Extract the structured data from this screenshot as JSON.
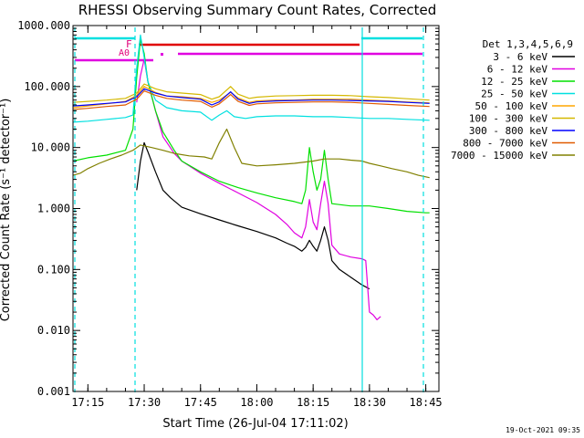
{
  "chart_data": {
    "type": "line",
    "title": "RHESSI Observing Summary Count Rates, Corrected",
    "xlabel": "Start Time (26-Jul-04 17:11:02)",
    "ylabel": "Corrected Count Rate (s⁻¹ detector⁻¹)",
    "y_scale": "log",
    "ylim": [
      0.001,
      1000
    ],
    "xlim": [
      "17:11:02",
      "18:48:30"
    ],
    "x_ticks": [
      "17:15",
      "17:30",
      "17:45",
      "18:00",
      "18:15",
      "18:30",
      "18:45"
    ],
    "y_ticks": [
      "1000.000",
      "100.000",
      "10.000",
      "1.000",
      "0.100",
      "0.010",
      "0.001"
    ],
    "legend_title": "Det 1,3,4,5,6,9",
    "legend_position": "right",
    "timestamp": "19-Oct-2021 09:35",
    "annotations": [
      {
        "text": "F",
        "color": "#e0007a"
      },
      {
        "text": "A0",
        "color": "#e0007a"
      }
    ],
    "series": [
      {
        "name": "3 - 6 keV",
        "color": "#000000",
        "points": [
          [
            "17:28:00",
            2.0
          ],
          [
            "17:29:00",
            6.0
          ],
          [
            "17:30:00",
            12.0
          ],
          [
            "17:31:00",
            8.5
          ],
          [
            "17:33:00",
            4.0
          ],
          [
            "17:35:00",
            2.0
          ],
          [
            "17:37:00",
            1.5
          ],
          [
            "17:40:00",
            1.05
          ],
          [
            "17:45:00",
            0.82
          ],
          [
            "17:50:00",
            0.65
          ],
          [
            "17:55:00",
            0.52
          ],
          [
            "18:00:00",
            0.42
          ],
          [
            "18:05:00",
            0.33
          ],
          [
            "18:08:00",
            0.27
          ],
          [
            "18:10:00",
            0.24
          ],
          [
            "18:12:00",
            0.2
          ],
          [
            "18:13:00",
            0.23
          ],
          [
            "18:14:00",
            0.3
          ],
          [
            "18:15:00",
            0.24
          ],
          [
            "18:16:00",
            0.2
          ],
          [
            "18:17:00",
            0.3
          ],
          [
            "18:18:00",
            0.5
          ],
          [
            "18:19:00",
            0.3
          ],
          [
            "18:20:00",
            0.14
          ],
          [
            "18:22:00",
            0.1
          ],
          [
            "18:25:00",
            0.075
          ],
          [
            "18:28:00",
            0.056
          ],
          [
            "18:30:00",
            0.048
          ]
        ]
      },
      {
        "name": "6 - 12 keV",
        "color": "#e000e0",
        "points": [
          [
            "17:28:00",
            55.0
          ],
          [
            "17:29:00",
            150.0
          ],
          [
            "17:30:00",
            280.0
          ],
          [
            "17:31:00",
            120.0
          ],
          [
            "17:33:00",
            40.0
          ],
          [
            "17:35:00",
            15.0
          ],
          [
            "17:38:00",
            8.0
          ],
          [
            "17:40:00",
            6.0
          ],
          [
            "17:45:00",
            3.8
          ],
          [
            "17:50:00",
            2.6
          ],
          [
            "17:55:00",
            1.8
          ],
          [
            "18:00:00",
            1.25
          ],
          [
            "18:05:00",
            0.8
          ],
          [
            "18:08:00",
            0.55
          ],
          [
            "18:10:00",
            0.4
          ],
          [
            "18:12:00",
            0.33
          ],
          [
            "18:13:00",
            0.5
          ],
          [
            "18:14:00",
            1.4
          ],
          [
            "18:15:00",
            0.6
          ],
          [
            "18:16:00",
            0.45
          ],
          [
            "18:17:00",
            1.2
          ],
          [
            "18:18:00",
            2.8
          ],
          [
            "18:19:00",
            1.2
          ],
          [
            "18:20:00",
            0.25
          ],
          [
            "18:22:00",
            0.18
          ],
          [
            "18:25:00",
            0.16
          ],
          [
            "18:28:00",
            0.15
          ],
          [
            "18:29:00",
            0.14
          ],
          [
            "18:30:00",
            0.02
          ],
          [
            "18:31:00",
            0.018
          ],
          [
            "18:32:00",
            0.015
          ],
          [
            "18:33:00",
            0.017
          ]
        ]
      },
      {
        "name": "12 - 25 keV",
        "color": "#00e000",
        "points": [
          [
            "17:11:02",
            6.0
          ],
          [
            "17:15:00",
            6.8
          ],
          [
            "17:20:00",
            7.5
          ],
          [
            "17:25:00",
            9.0
          ],
          [
            "17:27:00",
            20.0
          ],
          [
            "17:28:00",
            140.0
          ],
          [
            "17:29:00",
            600.0
          ],
          [
            "17:30:00",
            350.0
          ],
          [
            "17:31:00",
            120.0
          ],
          [
            "17:33:00",
            40.0
          ],
          [
            "17:35:00",
            18.0
          ],
          [
            "17:38:00",
            9.0
          ],
          [
            "17:40:00",
            6.0
          ],
          [
            "17:45:00",
            4.0
          ],
          [
            "17:50:00",
            2.8
          ],
          [
            "17:55:00",
            2.2
          ],
          [
            "18:00:00",
            1.8
          ],
          [
            "18:05:00",
            1.5
          ],
          [
            "18:10:00",
            1.3
          ],
          [
            "18:12:00",
            1.2
          ],
          [
            "18:13:00",
            2.0
          ],
          [
            "18:14:00",
            10.0
          ],
          [
            "18:15:00",
            4.0
          ],
          [
            "18:16:00",
            2.0
          ],
          [
            "18:17:00",
            3.0
          ],
          [
            "18:18:00",
            9.0
          ],
          [
            "18:19:00",
            3.0
          ],
          [
            "18:20:00",
            1.2
          ],
          [
            "18:25:00",
            1.1
          ],
          [
            "18:30:00",
            1.1
          ],
          [
            "18:35:00",
            1.0
          ],
          [
            "18:40:00",
            0.9
          ],
          [
            "18:45:00",
            0.85
          ],
          [
            "18:46:00",
            0.85
          ]
        ]
      },
      {
        "name": "25 - 50 keV",
        "color": "#00e0e0",
        "points": [
          [
            "17:11:02",
            26.0
          ],
          [
            "17:15:00",
            27.0
          ],
          [
            "17:20:00",
            29.0
          ],
          [
            "17:25:00",
            31.0
          ],
          [
            "17:27:00",
            34.0
          ],
          [
            "17:28:00",
            200.0
          ],
          [
            "17:29:00",
            700.0
          ],
          [
            "17:30:00",
            300.0
          ],
          [
            "17:31:00",
            120.0
          ],
          [
            "17:33:00",
            60.0
          ],
          [
            "17:36:00",
            45.0
          ],
          [
            "17:40:00",
            40.0
          ],
          [
            "17:45:00",
            38.0
          ],
          [
            "17:48:00",
            28.0
          ],
          [
            "17:50:00",
            34.0
          ],
          [
            "17:52:00",
            40.0
          ],
          [
            "17:54:00",
            32.0
          ],
          [
            "17:57:00",
            30.0
          ],
          [
            "18:00:00",
            32.0
          ],
          [
            "18:05:00",
            33.0
          ],
          [
            "18:10:00",
            33.0
          ],
          [
            "18:15:00",
            32.0
          ],
          [
            "18:20:00",
            32.0
          ],
          [
            "18:25:00",
            31.0
          ],
          [
            "18:30:00",
            30.0
          ],
          [
            "18:35:00",
            30.0
          ],
          [
            "18:40:00",
            29.0
          ],
          [
            "18:46:00",
            28.0
          ]
        ]
      },
      {
        "name": "50 - 100 keV",
        "color": "#ffa500",
        "points": [
          [
            "17:11:02",
            45.0
          ],
          [
            "17:15:00",
            48.0
          ],
          [
            "17:20:00",
            52.0
          ],
          [
            "17:25:00",
            57.0
          ],
          [
            "17:28:00",
            72.0
          ],
          [
            "17:30:00",
            100.0
          ],
          [
            "17:33:00",
            80.0
          ],
          [
            "17:36:00",
            70.0
          ],
          [
            "17:40:00",
            68.0
          ],
          [
            "17:45:00",
            64.0
          ],
          [
            "17:48:00",
            55.0
          ],
          [
            "17:50:00",
            60.0
          ],
          [
            "17:53:00",
            80.0
          ],
          [
            "17:55:00",
            65.0
          ],
          [
            "17:58:00",
            55.0
          ],
          [
            "18:00:00",
            58.0
          ],
          [
            "18:05:00",
            60.0
          ],
          [
            "18:10:00",
            60.0
          ],
          [
            "18:15:00",
            62.0
          ],
          [
            "18:20:00",
            62.0
          ],
          [
            "18:25:00",
            62.0
          ],
          [
            "18:30:00",
            60.0
          ],
          [
            "18:35:00",
            58.0
          ],
          [
            "18:40:00",
            56.0
          ],
          [
            "18:46:00",
            54.0
          ]
        ]
      },
      {
        "name": "100 - 300 keV",
        "color": "#d4b800",
        "points": [
          [
            "17:11:02",
            55.0
          ],
          [
            "17:15:00",
            57.0
          ],
          [
            "17:20:00",
            60.0
          ],
          [
            "17:25:00",
            64.0
          ],
          [
            "17:28:00",
            78.0
          ],
          [
            "17:30:00",
            110.0
          ],
          [
            "17:33:00",
            92.0
          ],
          [
            "17:36:00",
            82.0
          ],
          [
            "17:40:00",
            78.0
          ],
          [
            "17:45:00",
            74.0
          ],
          [
            "17:48:00",
            62.0
          ],
          [
            "17:50:00",
            68.0
          ],
          [
            "17:53:00",
            100.0
          ],
          [
            "17:55:00",
            75.0
          ],
          [
            "17:58:00",
            64.0
          ],
          [
            "18:00:00",
            67.0
          ],
          [
            "18:05:00",
            70.0
          ],
          [
            "18:10:00",
            71.0
          ],
          [
            "18:15:00",
            72.0
          ],
          [
            "18:20:00",
            72.0
          ],
          [
            "18:25:00",
            71.0
          ],
          [
            "18:30:00",
            68.0
          ],
          [
            "18:35:00",
            66.0
          ],
          [
            "18:40:00",
            63.0
          ],
          [
            "18:46:00",
            60.0
          ]
        ]
      },
      {
        "name": "300 - 800 keV",
        "color": "#0000ff",
        "points": [
          [
            "17:11:02",
            48.0
          ],
          [
            "17:15:00",
            50.0
          ],
          [
            "17:20:00",
            53.0
          ],
          [
            "17:25:00",
            56.0
          ],
          [
            "17:28:00",
            68.0
          ],
          [
            "17:30:00",
            92.0
          ],
          [
            "17:33:00",
            78.0
          ],
          [
            "17:36:00",
            70.0
          ],
          [
            "17:40:00",
            66.0
          ],
          [
            "17:45:00",
            62.0
          ],
          [
            "17:48:00",
            50.0
          ],
          [
            "17:50:00",
            56.0
          ],
          [
            "17:53:00",
            82.0
          ],
          [
            "17:55:00",
            62.0
          ],
          [
            "17:58:00",
            53.0
          ],
          [
            "18:00:00",
            56.0
          ],
          [
            "18:05:00",
            58.0
          ],
          [
            "18:10:00",
            59.0
          ],
          [
            "18:15:00",
            60.0
          ],
          [
            "18:20:00",
            60.0
          ],
          [
            "18:25:00",
            59.0
          ],
          [
            "18:30:00",
            58.0
          ],
          [
            "18:35:00",
            57.0
          ],
          [
            "18:40:00",
            55.0
          ],
          [
            "18:46:00",
            53.0
          ]
        ]
      },
      {
        "name": "800 - 7000 keV",
        "color": "#e05a00",
        "points": [
          [
            "17:11:02",
            42.0
          ],
          [
            "17:15:00",
            44.0
          ],
          [
            "17:20:00",
            47.0
          ],
          [
            "17:25:00",
            50.0
          ],
          [
            "17:28:00",
            62.0
          ],
          [
            "17:30:00",
            85.0
          ],
          [
            "17:33:00",
            72.0
          ],
          [
            "17:36:00",
            64.0
          ],
          [
            "17:40:00",
            60.0
          ],
          [
            "17:45:00",
            57.0
          ],
          [
            "17:48:00",
            46.0
          ],
          [
            "17:50:00",
            52.0
          ],
          [
            "17:53:00",
            74.0
          ],
          [
            "17:55:00",
            57.0
          ],
          [
            "17:58:00",
            49.0
          ],
          [
            "18:00:00",
            52.0
          ],
          [
            "18:05:00",
            54.0
          ],
          [
            "18:10:00",
            55.0
          ],
          [
            "18:15:00",
            56.0
          ],
          [
            "18:20:00",
            56.0
          ],
          [
            "18:25:00",
            55.0
          ],
          [
            "18:30:00",
            53.0
          ],
          [
            "18:35:00",
            51.0
          ],
          [
            "18:40:00",
            49.0
          ],
          [
            "18:46:00",
            47.0
          ]
        ]
      },
      {
        "name": "7000 - 15000 keV",
        "color": "#808000",
        "points": [
          [
            "17:11:02",
            3.5
          ],
          [
            "17:13:00",
            3.8
          ],
          [
            "17:15:00",
            4.5
          ],
          [
            "17:18:00",
            5.5
          ],
          [
            "17:21:00",
            6.5
          ],
          [
            "17:24:00",
            7.5
          ],
          [
            "17:27:00",
            9.0
          ],
          [
            "17:29:00",
            11.0
          ],
          [
            "17:32:00",
            10.0
          ],
          [
            "17:35:00",
            9.0
          ],
          [
            "17:38:00",
            8.0
          ],
          [
            "17:42:00",
            7.3
          ],
          [
            "17:46:00",
            7.0
          ],
          [
            "17:48:00",
            6.5
          ],
          [
            "17:50:00",
            12.0
          ],
          [
            "17:52:00",
            20.0
          ],
          [
            "17:54:00",
            10.0
          ],
          [
            "17:56:00",
            5.5
          ],
          [
            "18:00:00",
            5.0
          ],
          [
            "18:05:00",
            5.2
          ],
          [
            "18:10:00",
            5.5
          ],
          [
            "18:15:00",
            6.0
          ],
          [
            "18:18:00",
            6.5
          ],
          [
            "18:22:00",
            6.5
          ],
          [
            "18:25:00",
            6.2
          ],
          [
            "18:28:00",
            6.0
          ],
          [
            "18:30:00",
            5.5
          ],
          [
            "18:33:00",
            5.0
          ],
          [
            "18:36:00",
            4.5
          ],
          [
            "18:40:00",
            4.0
          ],
          [
            "18:43:00",
            3.5
          ],
          [
            "18:46:00",
            3.2
          ]
        ]
      }
    ]
  }
}
